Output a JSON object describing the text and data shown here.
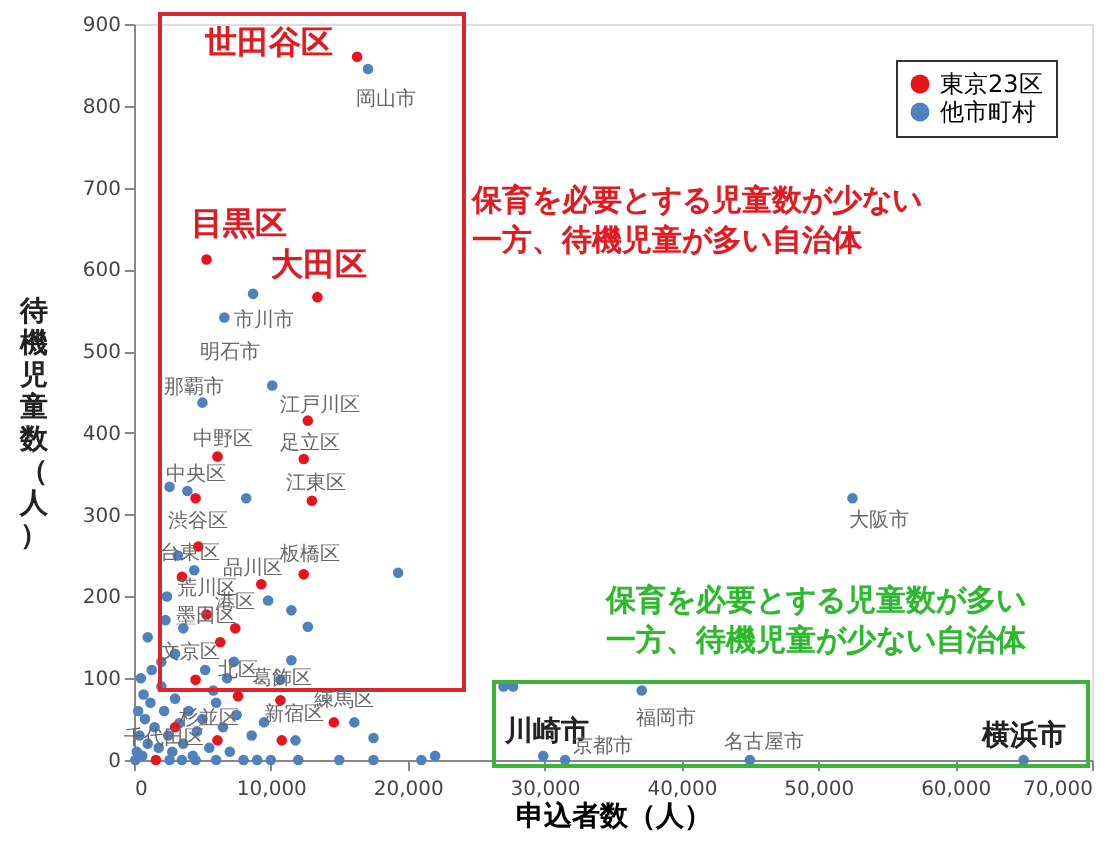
{
  "chart_data": {
    "type": "scatter",
    "xlabel": "申込者数（人）",
    "ylabel": "待機児童数（人）",
    "xlim": [
      0,
      70000
    ],
    "ylim": [
      0,
      900
    ],
    "xticks": [
      0,
      {
        "value": 10000,
        "label": "10,000"
      },
      {
        "value": 20000,
        "label": "20,000"
      },
      {
        "value": 30000,
        "label": "30,000"
      },
      {
        "value": 40000,
        "label": "40,000"
      },
      {
        "value": 50000,
        "label": "50,000"
      },
      {
        "value": 60000,
        "label": "60,000"
      },
      {
        "value": 70000,
        "label": "70,000"
      }
    ],
    "yticks": [
      0,
      100,
      200,
      300,
      400,
      500,
      600,
      700,
      800,
      900
    ],
    "grid": false,
    "legend": "top right",
    "marker": "circle",
    "series": [
      {
        "name": "東京23区",
        "color": "#e8141c",
        "x": [
          16300,
          5300,
          13400,
          12700,
          6100,
          12400,
          4500,
          13000,
          4700,
          3500,
          12400,
          9300,
          5300,
          7400,
          6300,
          4500,
          7600,
          10700,
          14600,
          10800,
          6100,
          1600,
          3000
        ],
        "values": [
          860,
          612,
          566,
          415,
          371,
          368,
          320,
          317,
          261,
          224,
          227,
          215,
          178,
          161,
          144,
          98,
          78,
          73,
          46,
          24,
          24,
          0,
          40
        ]
      },
      {
        "name": "他市町村",
        "color": "#4f81bd",
        "x": [
          17100,
          8700,
          6600,
          10100,
          5000,
          2600,
          8200,
          3900,
          19300,
          9800,
          11500,
          12700,
          3600,
          4400,
          2300,
          11500,
          7300,
          16100,
          17500,
          9500,
          11800,
          10700,
          5800,
          27000,
          27700,
          29900,
          31500,
          37100,
          45000,
          65000,
          52500,
          200,
          400,
          600,
          800,
          1000,
          1200,
          1500,
          1800,
          2000,
          2200,
          2500,
          2800,
          3000,
          3300,
          3600,
          4000,
          4300,
          4600,
          5000,
          5500,
          6000,
          6500,
          7000,
          7500,
          8000,
          9000,
          10000,
          500,
          1300,
          2000,
          1000,
          3000,
          700,
          300,
          2600,
          3500,
          4500,
          6000,
          12000,
          15000,
          17500,
          21000,
          22000,
          100,
          2400,
          3200,
          5200,
          8600,
          6800
        ],
        "values": [
          845,
          570,
          541,
          458,
          437,
          334,
          320,
          329,
          229,
          195,
          183,
          163,
          161,
          232,
          171,
          122,
          120,
          46,
          27,
          46,
          24,
          98,
          85,
          90,
          90,
          5,
          0,
          85,
          0,
          0,
          320,
          10,
          30,
          5,
          50,
          20,
          70,
          40,
          15,
          90,
          60,
          30,
          10,
          75,
          45,
          20,
          60,
          5,
          35,
          50,
          15,
          70,
          40,
          10,
          55,
          0,
          0,
          0,
          100,
          110,
          120,
          150,
          130,
          80,
          60,
          0,
          0,
          0,
          0,
          0,
          0,
          0,
          0,
          5,
          0,
          200,
          250,
          110,
          30,
          100
        ]
      }
    ],
    "annotations": [
      {
        "text": "世田谷区",
        "x": 16300,
        "y": 860
      },
      {
        "text": "岡山市",
        "x": 17100,
        "y": 845
      },
      {
        "text": "目黒区",
        "x": 5300,
        "y": 612
      },
      {
        "text": "大田区",
        "x": 13400,
        "y": 566
      },
      {
        "text": "市川市",
        "x": 6600,
        "y": 541
      },
      "明石市",
      {
        "text": "那覇市",
        "x": 5000,
        "y": 437
      },
      {
        "text": "江戸川区",
        "x": 12700,
        "y": 415
      },
      {
        "text": "中野区",
        "x": 6100,
        "y": 371
      },
      {
        "text": "足立区",
        "x": 12400,
        "y": 368
      },
      {
        "text": "中央区",
        "x": 4500,
        "y": 320
      },
      {
        "text": "江東区",
        "x": 13000,
        "y": 317
      },
      {
        "text": "渋谷区",
        "x": 4700,
        "y": 261
      },
      {
        "text": "台東区",
        "x": 3500,
        "y": 224
      },
      {
        "text": "板橋区",
        "x": 12400,
        "y": 227
      },
      {
        "text": "品川区",
        "x": 9300,
        "y": 215
      },
      {
        "text": "荒川区",
        "x": 5300,
        "y": 178
      },
      {
        "text": "港区",
        "x": 7400,
        "y": 161
      },
      {
        "text": "墨田区",
        "x": 6300,
        "y": 144
      },
      {
        "text": "文京区",
        "x": 4500,
        "y": 98
      },
      {
        "text": "北区",
        "x": 7600,
        "y": 78
      },
      {
        "text": "葛飾区",
        "x": 10700,
        "y": 73
      },
      {
        "text": "練馬区",
        "x": 14600,
        "y": 46
      },
      {
        "text": "杉並区",
        "x": 6100,
        "y": 24
      },
      {
        "text": "新宿区",
        "x": 10800,
        "y": 24
      },
      {
        "text": "千代田区",
        "x": 1600,
        "y": 0
      },
      {
        "text": "川崎市",
        "x": 29900,
        "y": 5
      },
      {
        "text": "福岡市",
        "x": 37100,
        "y": 85
      },
      {
        "text": "京都市",
        "x": 31500,
        "y": 0
      },
      {
        "text": "名古屋市",
        "x": 45000,
        "y": 0
      },
      {
        "text": "横浜市",
        "x": 65000,
        "y": 0
      },
      {
        "text": "大阪市",
        "x": 52500,
        "y": 320
      },
      "保育を必要とする児童数が少ない",
      "一方、待機児童が多い自治体",
      "保育を必要とする児童数が多い",
      "一方、待機児童が少ない自治体"
    ]
  }
}
